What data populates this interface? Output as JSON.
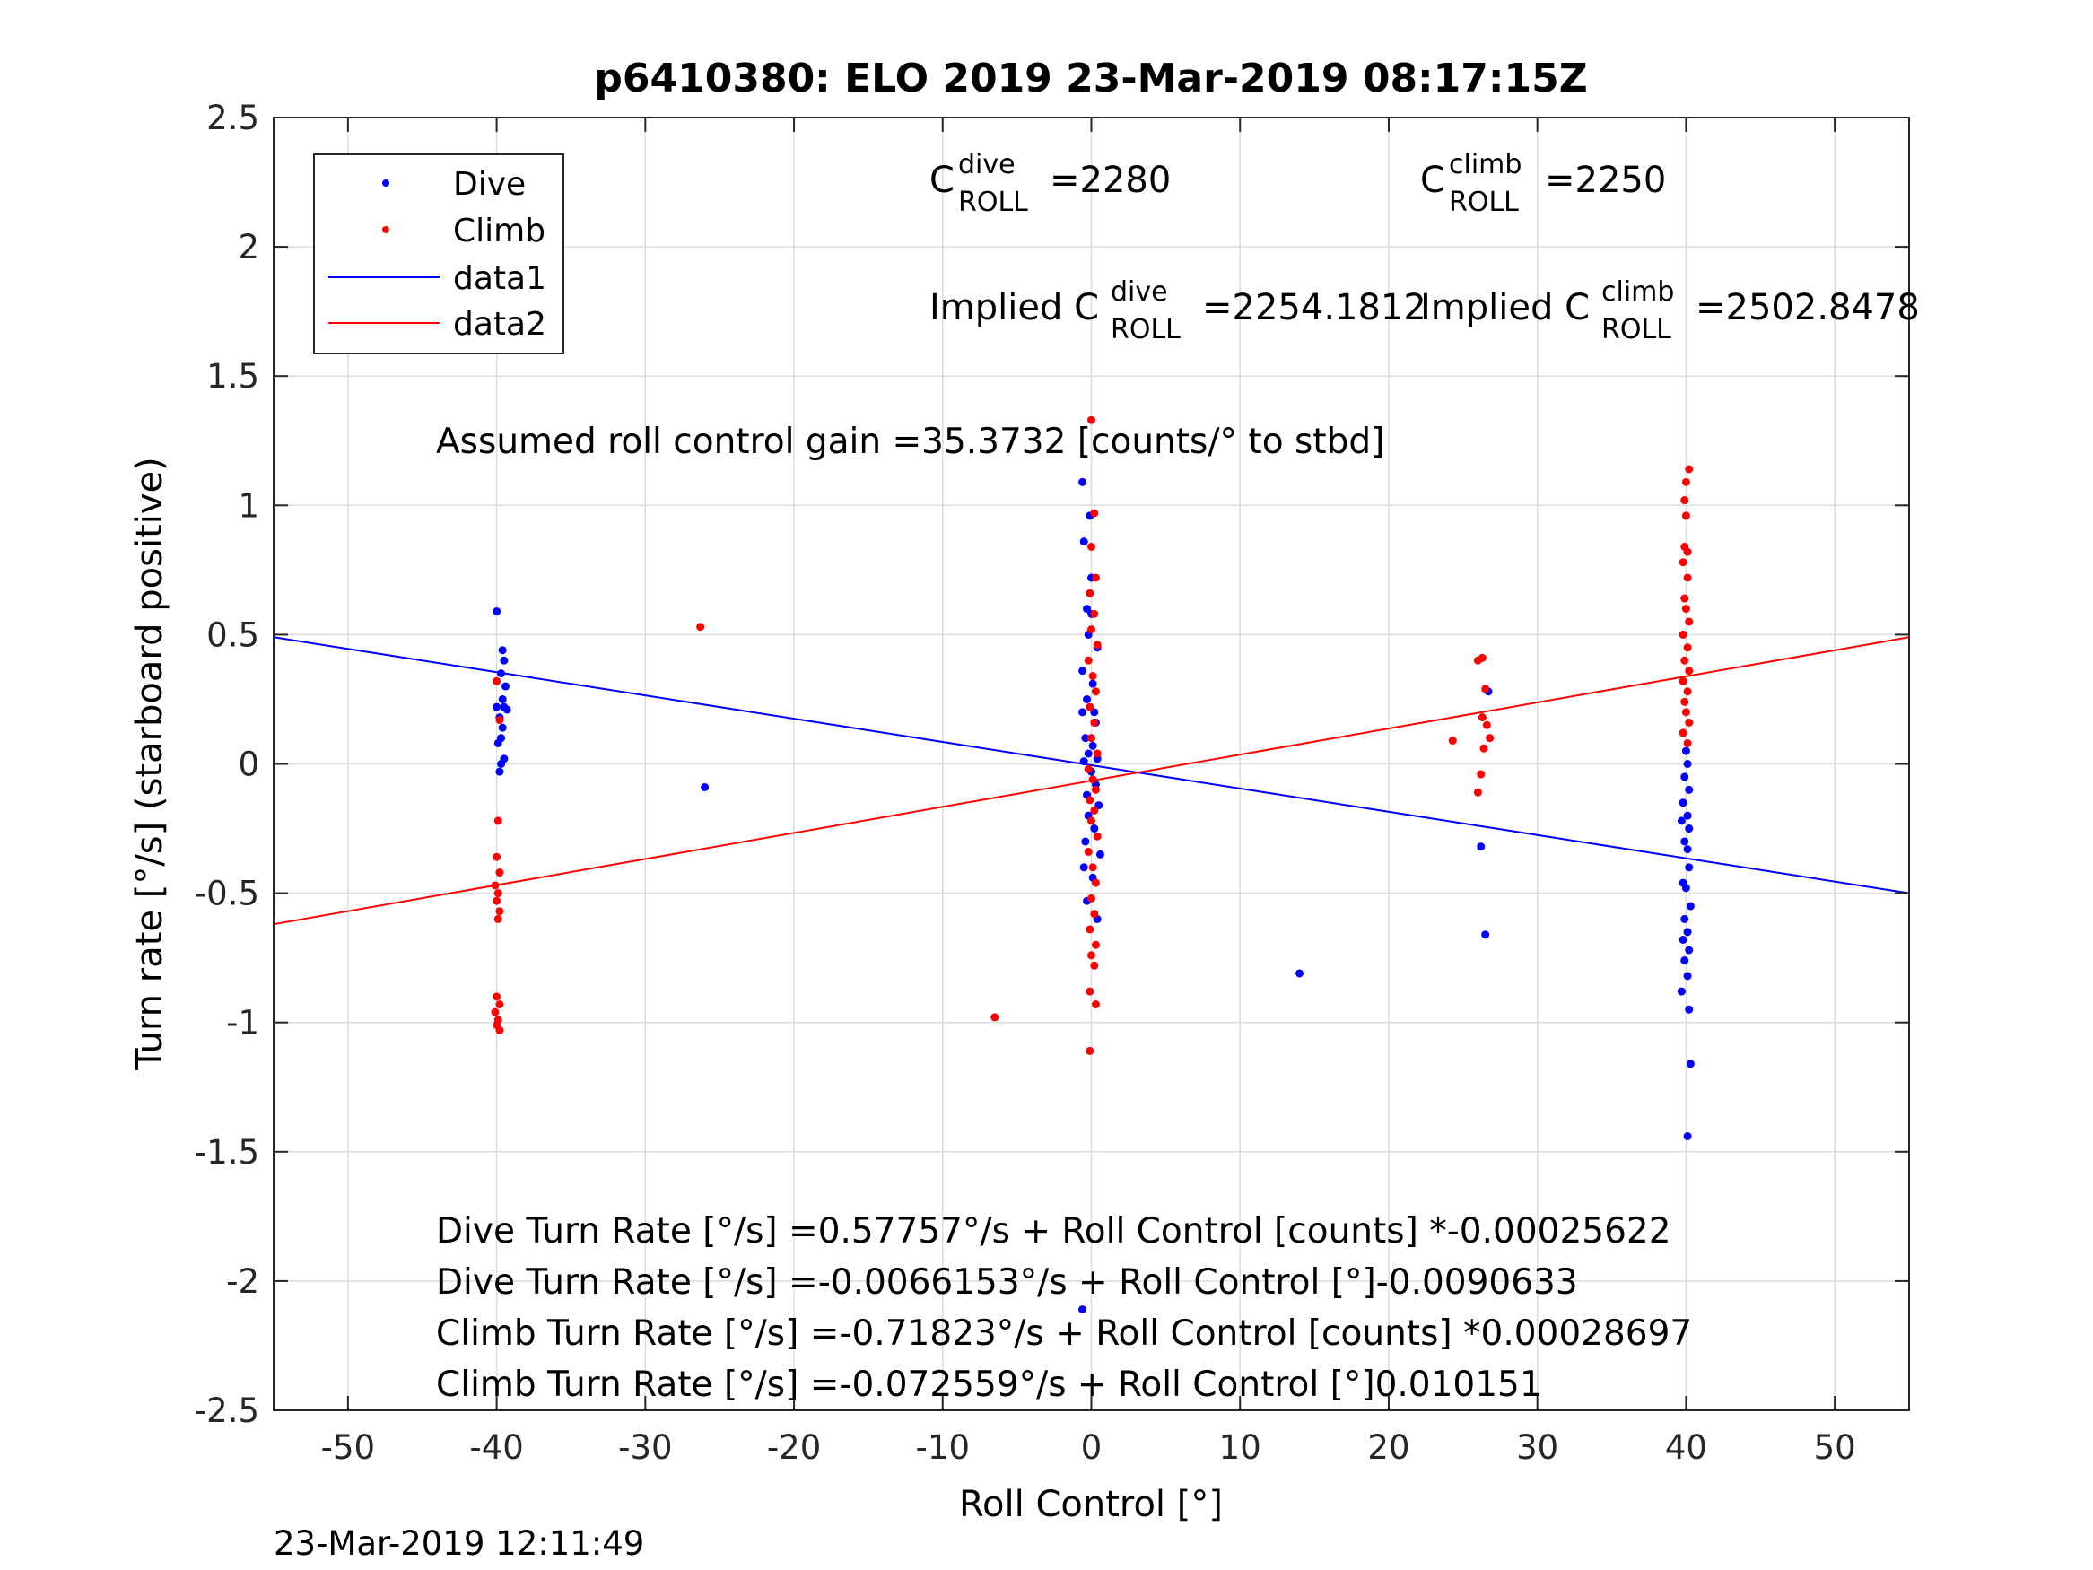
{
  "chart_data": {
    "type": "scatter",
    "title": "p6410380: ELO 2019 23-Mar-2019 08:17:15Z",
    "xlabel": "Roll Control [°]",
    "ylabel": "Turn rate [°/s] (starboard positive)",
    "xlim": [
      -55,
      55
    ],
    "ylim": [
      -2.5,
      2.5
    ],
    "xticks": [
      "-50",
      "-40",
      "-30",
      "-20",
      "-10",
      "0",
      "10",
      "20",
      "30",
      "40",
      "50"
    ],
    "yticks": [
      "-2.5",
      "-2",
      "-1.5",
      "-1",
      "-0.5",
      "0",
      "0.5",
      "1",
      "1.5",
      "2",
      "2.5"
    ],
    "grid": true,
    "legend_position": "top-left",
    "series": [
      {
        "name": "Dive",
        "kind": "points",
        "color": "#0000ff",
        "points": [
          [
            -40.0,
            0.59
          ],
          [
            -39.6,
            0.44
          ],
          [
            -39.5,
            0.4
          ],
          [
            -39.7,
            0.35
          ],
          [
            -39.4,
            0.3
          ],
          [
            -39.6,
            0.25
          ],
          [
            -39.5,
            0.22
          ],
          [
            -40.0,
            0.22
          ],
          [
            -39.3,
            0.21
          ],
          [
            -39.8,
            0.18
          ],
          [
            -39.6,
            0.14
          ],
          [
            -39.7,
            0.1
          ],
          [
            -39.9,
            0.08
          ],
          [
            -39.5,
            0.02
          ],
          [
            -39.7,
            0.0
          ],
          [
            -39.8,
            -0.03
          ],
          [
            -26.0,
            -0.09
          ],
          [
            -0.6,
            1.09
          ],
          [
            -0.1,
            0.96
          ],
          [
            -0.5,
            0.86
          ],
          [
            0.0,
            0.72
          ],
          [
            -0.3,
            0.6
          ],
          [
            0.0,
            0.58
          ],
          [
            -0.2,
            0.5
          ],
          [
            0.4,
            0.45
          ],
          [
            -0.6,
            0.36
          ],
          [
            0.1,
            0.31
          ],
          [
            -0.3,
            0.25
          ],
          [
            0.2,
            0.2
          ],
          [
            -0.6,
            0.2
          ],
          [
            0.3,
            0.16
          ],
          [
            -0.4,
            0.1
          ],
          [
            0.1,
            0.07
          ],
          [
            -0.2,
            0.04
          ],
          [
            0.4,
            0.02
          ],
          [
            -0.5,
            0.01
          ],
          [
            0.0,
            -0.03
          ],
          [
            0.3,
            -0.08
          ],
          [
            -0.3,
            -0.12
          ],
          [
            0.5,
            -0.16
          ],
          [
            -0.2,
            -0.2
          ],
          [
            0.2,
            -0.25
          ],
          [
            -0.4,
            -0.3
          ],
          [
            0.6,
            -0.35
          ],
          [
            -0.5,
            -0.4
          ],
          [
            0.1,
            -0.44
          ],
          [
            -0.3,
            -0.53
          ],
          [
            0.4,
            -0.6
          ],
          [
            -0.6,
            -2.11
          ],
          [
            14.0,
            -0.81
          ],
          [
            26.2,
            -0.32
          ],
          [
            26.5,
            -0.66
          ],
          [
            26.7,
            0.28
          ],
          [
            40.0,
            0.05
          ],
          [
            40.1,
            0.0
          ],
          [
            39.9,
            -0.05
          ],
          [
            40.2,
            -0.1
          ],
          [
            39.8,
            -0.15
          ],
          [
            40.1,
            -0.2
          ],
          [
            39.7,
            -0.22
          ],
          [
            40.2,
            -0.25
          ],
          [
            39.9,
            -0.3
          ],
          [
            40.1,
            -0.33
          ],
          [
            40.2,
            -0.4
          ],
          [
            39.8,
            -0.46
          ],
          [
            40.0,
            -0.48
          ],
          [
            40.3,
            -0.55
          ],
          [
            39.9,
            -0.6
          ],
          [
            40.1,
            -0.65
          ],
          [
            39.8,
            -0.68
          ],
          [
            40.2,
            -0.72
          ],
          [
            39.9,
            -0.76
          ],
          [
            40.1,
            -0.82
          ],
          [
            39.7,
            -0.88
          ],
          [
            40.2,
            -0.95
          ],
          [
            40.3,
            -1.16
          ],
          [
            40.1,
            -1.44
          ]
        ]
      },
      {
        "name": "Climb",
        "kind": "points",
        "color": "#ff0000",
        "points": [
          [
            -40.0,
            0.32
          ],
          [
            -39.8,
            0.17
          ],
          [
            -39.9,
            -0.22
          ],
          [
            -40.0,
            -0.36
          ],
          [
            -39.8,
            -0.42
          ],
          [
            -40.1,
            -0.47
          ],
          [
            -39.9,
            -0.5
          ],
          [
            -40.0,
            -0.53
          ],
          [
            -39.8,
            -0.57
          ],
          [
            -39.9,
            -0.6
          ],
          [
            -40.0,
            -0.9
          ],
          [
            -39.8,
            -0.93
          ],
          [
            -40.1,
            -0.96
          ],
          [
            -39.9,
            -0.99
          ],
          [
            -40.0,
            -1.01
          ],
          [
            -39.8,
            -1.03
          ],
          [
            -26.3,
            0.53
          ],
          [
            -6.5,
            -0.98
          ],
          [
            0.0,
            1.33
          ],
          [
            0.2,
            0.97
          ],
          [
            0.0,
            0.84
          ],
          [
            0.3,
            0.72
          ],
          [
            -0.1,
            0.66
          ],
          [
            0.2,
            0.58
          ],
          [
            0.0,
            0.52
          ],
          [
            0.4,
            0.46
          ],
          [
            -0.2,
            0.4
          ],
          [
            0.1,
            0.34
          ],
          [
            0.3,
            0.28
          ],
          [
            -0.1,
            0.22
          ],
          [
            0.2,
            0.16
          ],
          [
            0.0,
            0.1
          ],
          [
            0.4,
            0.04
          ],
          [
            -0.2,
            -0.02
          ],
          [
            0.1,
            -0.06
          ],
          [
            0.3,
            -0.1
          ],
          [
            -0.1,
            -0.14
          ],
          [
            0.2,
            -0.18
          ],
          [
            0.0,
            -0.22
          ],
          [
            0.4,
            -0.28
          ],
          [
            -0.2,
            -0.34
          ],
          [
            0.1,
            -0.4
          ],
          [
            0.3,
            -0.46
          ],
          [
            0.0,
            -0.52
          ],
          [
            0.2,
            -0.58
          ],
          [
            -0.1,
            -0.64
          ],
          [
            0.3,
            -0.7
          ],
          [
            0.0,
            -0.74
          ],
          [
            0.2,
            -0.78
          ],
          [
            -0.1,
            -0.88
          ],
          [
            0.3,
            -0.93
          ],
          [
            -0.1,
            -1.11
          ],
          [
            24.3,
            0.09
          ],
          [
            26.0,
            0.4
          ],
          [
            26.3,
            0.41
          ],
          [
            26.5,
            0.29
          ],
          [
            26.3,
            0.18
          ],
          [
            26.6,
            0.15
          ],
          [
            26.8,
            0.1
          ],
          [
            26.4,
            0.06
          ],
          [
            26.2,
            -0.04
          ],
          [
            26.0,
            -0.11
          ],
          [
            40.2,
            1.14
          ],
          [
            40.0,
            1.09
          ],
          [
            39.9,
            1.02
          ],
          [
            40.0,
            0.96
          ],
          [
            39.9,
            0.84
          ],
          [
            40.1,
            0.82
          ],
          [
            39.8,
            0.78
          ],
          [
            40.1,
            0.72
          ],
          [
            39.9,
            0.64
          ],
          [
            40.0,
            0.6
          ],
          [
            40.2,
            0.55
          ],
          [
            39.8,
            0.5
          ],
          [
            40.1,
            0.45
          ],
          [
            39.9,
            0.4
          ],
          [
            40.2,
            0.36
          ],
          [
            39.8,
            0.32
          ],
          [
            40.1,
            0.28
          ],
          [
            39.9,
            0.24
          ],
          [
            40.0,
            0.2
          ],
          [
            40.2,
            0.16
          ],
          [
            39.8,
            0.12
          ],
          [
            40.1,
            0.08
          ]
        ]
      },
      {
        "name": "data1",
        "kind": "line",
        "color": "#0000ff",
        "x": [
          -55,
          55
        ],
        "y": [
          0.49,
          -0.5
        ]
      },
      {
        "name": "data2",
        "kind": "line",
        "color": "#ff0000",
        "x": [
          -55,
          55
        ],
        "y": [
          -0.62,
          0.49
        ]
      }
    ],
    "annotations": {
      "c_dive": {
        "base": "C",
        "sup": "dive",
        "sub": "ROLL",
        "value": "=2280"
      },
      "c_climb": {
        "base": "C",
        "sup": "climb",
        "sub": "ROLL",
        "value": "=2250"
      },
      "implied_dive": {
        "base": "Implied C",
        "sup": "dive",
        "sub": "ROLL",
        "value": "=2254.1812"
      },
      "implied_climb": {
        "base": "Implied C",
        "sup": "climb",
        "sub": "ROLL",
        "value": "=2502.8478"
      },
      "gain": "Assumed roll control gain =35.3732 [counts/° to stbd]",
      "eq1": "Dive Turn Rate [°/s] =0.57757°/s + Roll Control [counts] *-0.00025622",
      "eq2": "Dive Turn Rate [°/s] =-0.0066153°/s + Roll Control [°]-0.0090633",
      "eq3": "Climb Turn Rate [°/s] =-0.71823°/s + Roll Control [counts] *0.00028697",
      "eq4": "Climb Turn Rate [°/s] =-0.072559°/s + Roll Control [°]0.010151"
    },
    "timestamp": "23-Mar-2019 12:11:49"
  }
}
